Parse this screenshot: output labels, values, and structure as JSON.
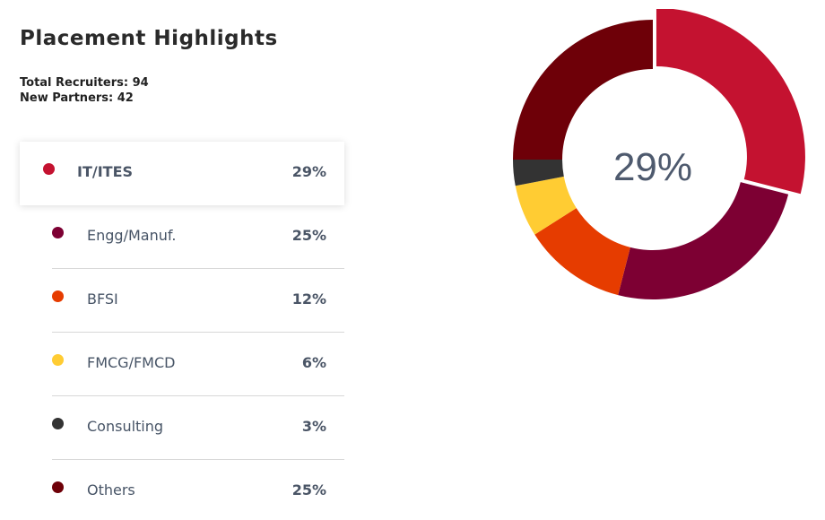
{
  "header": {
    "title": "Placement Highlights",
    "total_recruiters": "Total Recruiters: 94",
    "new_partners": "New Partners: 42"
  },
  "chart_data": {
    "type": "pie",
    "title": "Placement Highlights",
    "categories": [
      "IT/ITES",
      "Engg/Manuf.",
      "BFSI",
      "FMCG/FMCD",
      "Consulting",
      "Others"
    ],
    "values": [
      29,
      25,
      12,
      6,
      3,
      25
    ],
    "value_labels": [
      "29%",
      "25%",
      "12%",
      "6%",
      "3%",
      "25%"
    ],
    "colors": [
      "#c41230",
      "#7d0033",
      "#e63c00",
      "#ffcc33",
      "#333333",
      "#6e0008"
    ],
    "highlighted": "IT/ITES",
    "center_label": "29%",
    "donut": true
  }
}
